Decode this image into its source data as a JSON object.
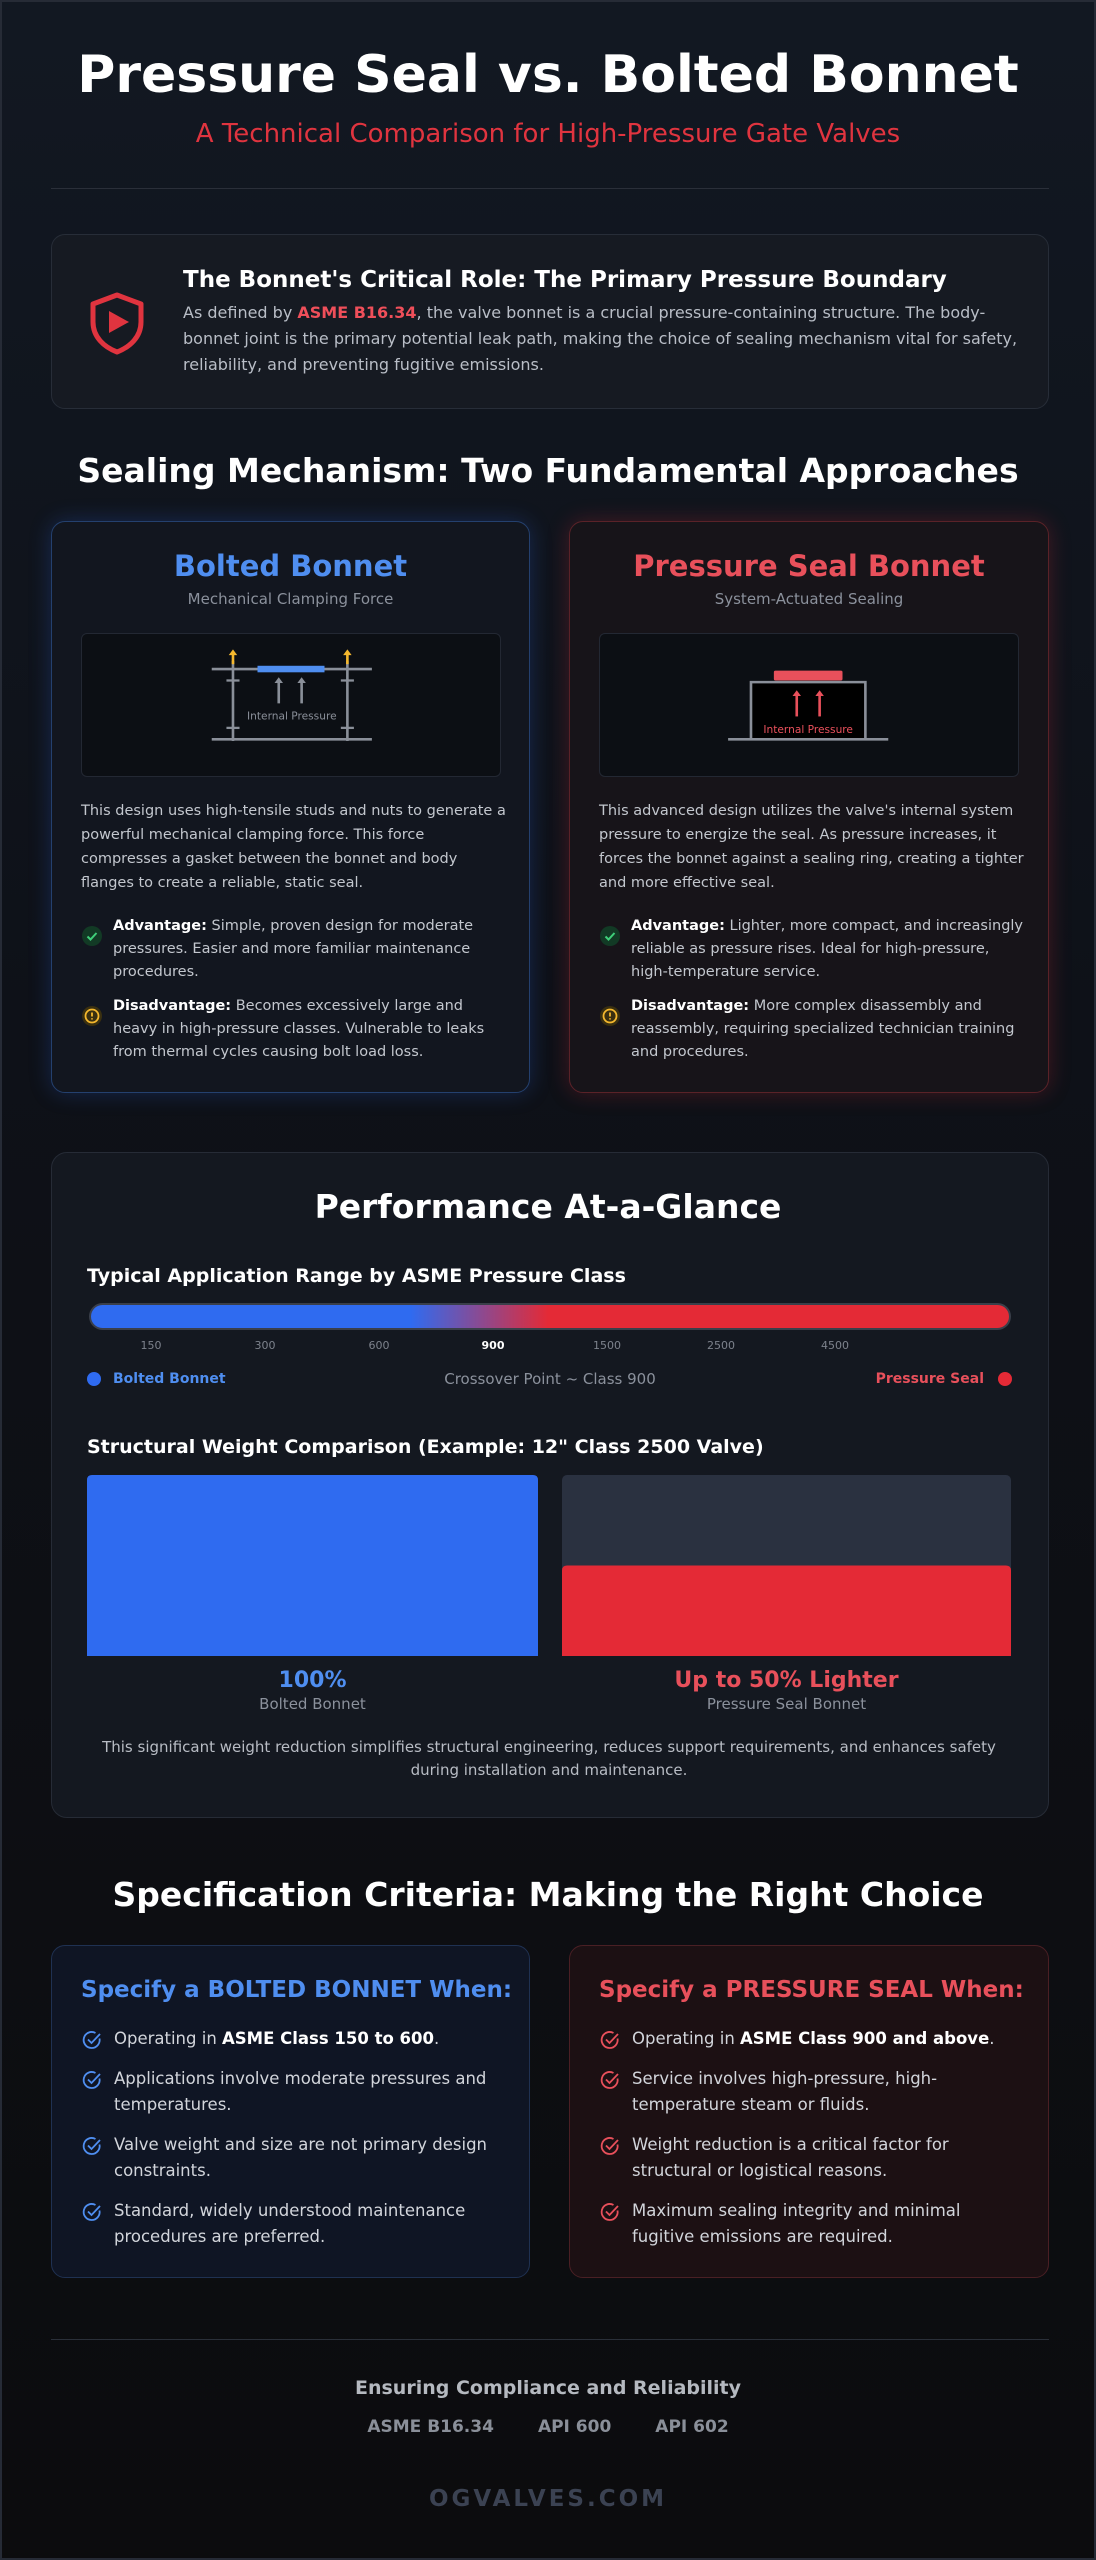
{
  "header": {
    "title": "Pressure Seal vs. Bolted Bonnet",
    "subtitle": "A Technical Comparison for High-Pressure Gate Valves"
  },
  "intro": {
    "heading": "The Bonnet's Critical Role: The Primary Pressure Boundary",
    "body": [
      "As defined by ",
      "ASME B16.34",
      ", the valve bonnet is a crucial pressure-containing structure. The body-bonnet joint is the primary potential leak path, making the choice of sealing mechanism vital for safety, reliability, and preventing fugitive emissions."
    ]
  },
  "mechanism": {
    "heading": "Sealing Mechanism: Two Fundamental Approaches",
    "cards": [
      {
        "title": "Bolted Bonnet",
        "subtitle": "Mechanical Clamping Force",
        "diagram_label": "Internal Pressure",
        "description": "This design uses high-tensile studs and nuts to generate a powerful mechanical clamping force. This force compresses a gasket between the bonnet and body flanges to create a reliable, static seal.",
        "advantage": {
          "label": "Advantage:",
          "text": "Simple, proven design for moderate pressures. Easier and more familiar maintenance procedures."
        },
        "disadvantage": {
          "label": "Disadvantage:",
          "text": "Becomes excessively large and heavy in high-pressure classes. Vulnerable to leaks from thermal cycles causing bolt load loss."
        }
      },
      {
        "title": "Pressure Seal Bonnet",
        "subtitle": "System-Actuated Sealing",
        "diagram_label": "Internal Pressure",
        "description": "This advanced design utilizes the valve's internal system pressure to energize the seal. As pressure increases, it forces the bonnet against a sealing ring, creating a tighter and more effective seal.",
        "advantage": {
          "label": "Advantage:",
          "text": "Lighter, more compact, and increasingly reliable as pressure rises. Ideal for high-pressure, high-temperature service."
        },
        "disadvantage": {
          "label": "Disadvantage:",
          "text": "More complex disassembly and reassembly, requiring specialized technician training and procedures."
        }
      }
    ]
  },
  "performance": {
    "heading": "Performance At-a-Glance",
    "range": {
      "title": "Typical Application Range by ASME Pressure Class",
      "ticks": [
        150,
        300,
        600,
        900,
        1500,
        2500,
        4500
      ],
      "crossover": 900,
      "legend": [
        "Bolted Bonnet",
        "Pressure Seal"
      ],
      "crossover_label": "Crossover Point ~ Class 900"
    },
    "weight": {
      "title": "Structural Weight Comparison (Example: 12\" Class 2500 Valve)",
      "bars": [
        {
          "name": "Bolted Bonnet",
          "value": 100,
          "value_label": "100%",
          "color": "#2f6bf0"
        },
        {
          "name": "Pressure Seal Bonnet",
          "value": 50,
          "value_label": "Up to 50% Lighter",
          "color": "#e42a36"
        }
      ],
      "note": "This significant weight reduction simplifies structural engineering, reduces support requirements, and enhances safety during installation and maintenance."
    }
  },
  "criteria": {
    "heading": "Specification Criteria: Making the Right Choice",
    "cards": [
      {
        "title": "Specify a BOLTED BONNET When:",
        "items": [
          [
            "Operating in ",
            "ASME Class 150 to 600",
            "."
          ],
          [
            "Applications involve moderate pressures and temperatures."
          ],
          [
            "Valve weight and size are not primary design constraints."
          ],
          [
            "Standard, widely understood maintenance procedures are preferred."
          ]
        ]
      },
      {
        "title": "Specify a PRESSURE SEAL When:",
        "items": [
          [
            "Operating in ",
            "ASME Class 900 and above",
            "."
          ],
          [
            "Service involves high-pressure, high-temperature steam or fluids."
          ],
          [
            "Weight reduction is a critical factor for structural or logistical reasons."
          ],
          [
            "Maximum sealing integrity and minimal fugitive emissions are required."
          ]
        ]
      }
    ]
  },
  "footer": {
    "heading": "Ensuring Compliance and Reliability",
    "standards": [
      "ASME B16.34",
      "API 600",
      "API 602"
    ],
    "brand": "OGVALVES.COM"
  }
}
